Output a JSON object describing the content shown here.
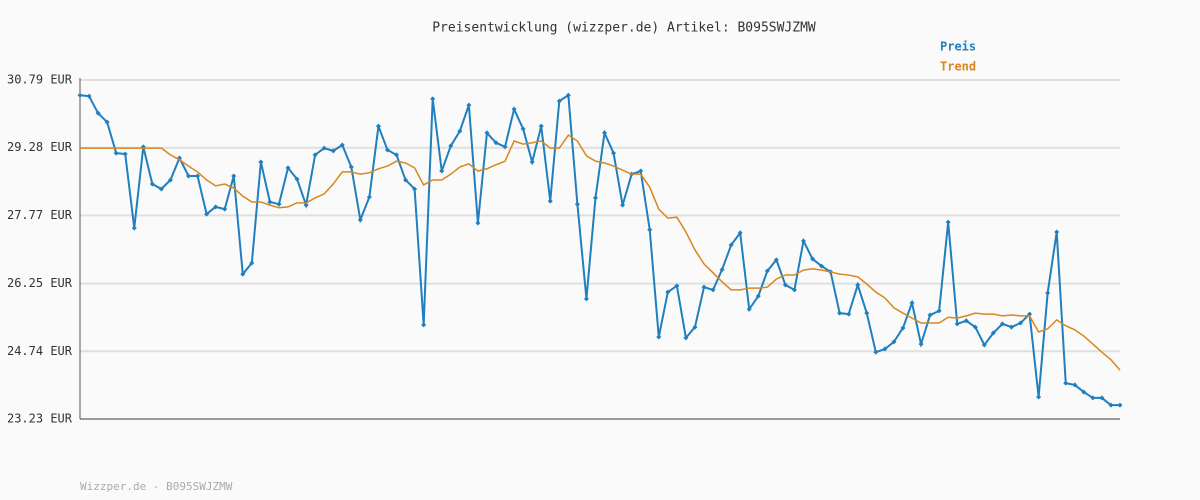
{
  "chart_data": {
    "type": "line",
    "title": "Preisentwicklung (wizzper.de) Artikel: B095SWJZMW",
    "footer": "Wizzper.de - B095SWJZMW",
    "ylim": [
      23.23,
      30.79
    ],
    "yticks": [
      {
        "value": 23.23,
        "label": "23.23 EUR"
      },
      {
        "value": 24.74,
        "label": "24.74 EUR"
      },
      {
        "value": 26.25,
        "label": "26.25 EUR"
      },
      {
        "value": 27.77,
        "label": "27.77 EUR"
      },
      {
        "value": 29.28,
        "label": "29.28 EUR"
      },
      {
        "value": 30.79,
        "label": "30.79 EUR"
      }
    ],
    "grid": true,
    "series": [
      {
        "name": "Preis",
        "color": "#1f7fbf",
        "markers": true,
        "values": [
          30.45,
          30.43,
          30.05,
          29.85,
          29.16,
          29.14,
          27.49,
          29.3,
          28.47,
          28.36,
          28.56,
          29.05,
          28.65,
          28.65,
          27.8,
          27.96,
          27.91,
          28.65,
          26.46,
          26.71,
          28.96,
          28.07,
          28.02,
          28.83,
          28.58,
          28.0,
          29.12,
          29.27,
          29.21,
          29.34,
          28.85,
          27.67,
          28.18,
          29.76,
          29.23,
          29.12,
          28.56,
          28.36,
          25.33,
          30.37,
          28.76,
          29.32,
          29.65,
          30.23,
          27.6,
          29.61,
          29.39,
          29.3,
          30.14,
          29.7,
          28.96,
          29.76,
          28.09,
          30.32,
          30.45,
          28.02,
          25.91,
          28.16,
          29.61,
          29.16,
          28.0,
          28.69,
          28.76,
          27.45,
          25.06,
          26.06,
          26.2,
          25.04,
          25.28,
          26.17,
          26.11,
          26.56,
          27.11,
          27.38,
          25.68,
          25.97,
          26.53,
          26.78,
          26.22,
          26.11,
          27.2,
          26.8,
          26.64,
          26.51,
          25.59,
          25.57,
          26.22,
          25.59,
          24.72,
          24.79,
          24.95,
          25.26,
          25.82,
          24.9,
          25.55,
          25.64,
          27.62,
          25.35,
          25.42,
          25.28,
          24.88,
          25.15,
          25.35,
          25.28,
          25.37,
          25.57,
          23.72,
          26.04,
          27.4,
          24.03,
          23.99,
          23.83,
          23.7,
          23.7,
          23.54,
          23.54
        ]
      },
      {
        "name": "Trend",
        "color": "#d9861c",
        "markers": false,
        "values": [
          29.27,
          29.27,
          29.27,
          29.27,
          29.27,
          29.27,
          29.27,
          29.27,
          29.27,
          29.27,
          29.12,
          29.01,
          28.87,
          28.74,
          28.56,
          28.43,
          28.47,
          28.38,
          28.2,
          28.07,
          28.07,
          28.0,
          27.94,
          27.96,
          28.05,
          28.05,
          28.16,
          28.25,
          28.47,
          28.74,
          28.74,
          28.69,
          28.72,
          28.81,
          28.87,
          28.98,
          28.94,
          28.83,
          28.45,
          28.56,
          28.56,
          28.69,
          28.85,
          28.92,
          28.76,
          28.81,
          28.9,
          28.98,
          29.43,
          29.36,
          29.39,
          29.43,
          29.27,
          29.27,
          29.56,
          29.43,
          29.1,
          28.98,
          28.94,
          28.87,
          28.78,
          28.69,
          28.69,
          28.4,
          27.91,
          27.71,
          27.73,
          27.4,
          27.0,
          26.69,
          26.49,
          26.29,
          26.11,
          26.11,
          26.15,
          26.15,
          26.17,
          26.35,
          26.44,
          26.44,
          26.55,
          26.58,
          26.55,
          26.51,
          26.46,
          26.44,
          26.4,
          26.24,
          26.06,
          25.93,
          25.71,
          25.59,
          25.48,
          25.37,
          25.37,
          25.37,
          25.5,
          25.48,
          25.53,
          25.59,
          25.57,
          25.57,
          25.53,
          25.55,
          25.53,
          25.53,
          25.17,
          25.24,
          25.44,
          25.31,
          25.22,
          25.08,
          24.9,
          24.72,
          24.55,
          24.32
        ]
      }
    ]
  }
}
